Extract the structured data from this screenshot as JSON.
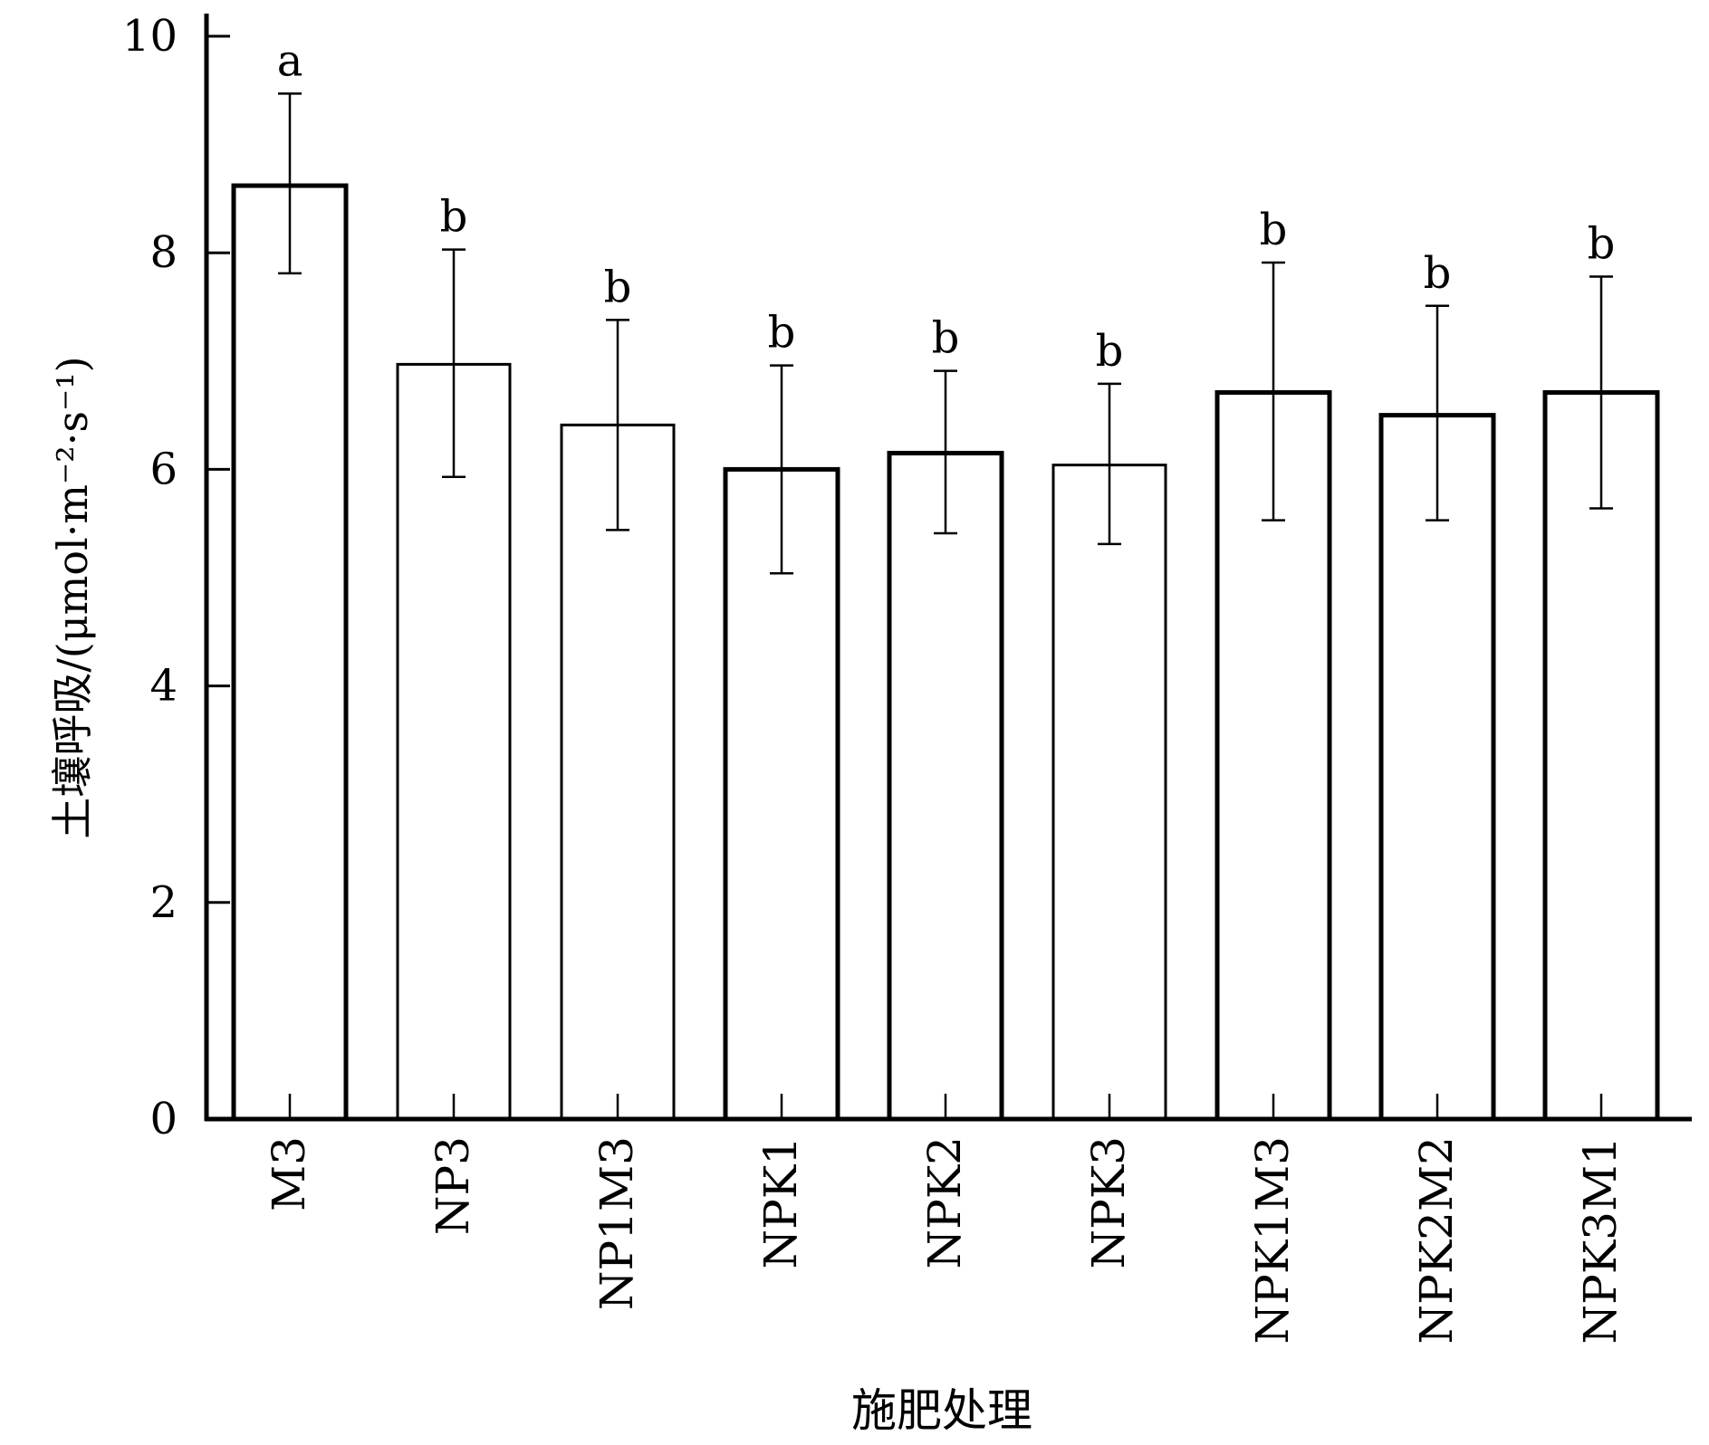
{
  "chart_data": {
    "type": "bar",
    "title": "",
    "xlabel": "施肥处理",
    "ylabel": "土壤呼吸/(μmol·m⁻²·s⁻¹)",
    "ylim": [
      0,
      10
    ],
    "yticks": [
      "0",
      "2",
      "4",
      "6",
      "8",
      "10"
    ],
    "grid": false,
    "categories": [
      "M3",
      "NP3",
      "NP1M3",
      "NPK1",
      "NPK2",
      "NPK3",
      "NPK1M3",
      "NPK2M2",
      "NPK3M1"
    ],
    "values": [
      8.62,
      6.97,
      6.41,
      6.0,
      6.15,
      6.04,
      6.71,
      6.5,
      6.71
    ],
    "error_upper": [
      9.47,
      8.03,
      7.38,
      6.96,
      6.91,
      6.79,
      7.91,
      7.51,
      7.78
    ],
    "error_lower": [
      7.81,
      5.93,
      5.44,
      5.04,
      5.41,
      5.31,
      5.53,
      5.53,
      5.64
    ],
    "significance_letters": [
      "a",
      "b",
      "b",
      "b",
      "b",
      "b",
      "b",
      "b",
      "b"
    ]
  }
}
